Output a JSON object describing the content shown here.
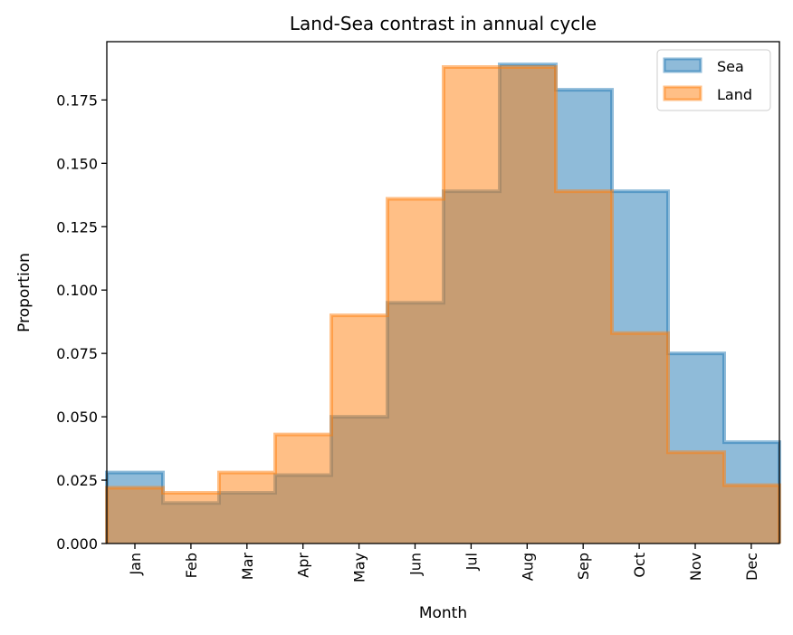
{
  "chart_data": {
    "type": "histogram",
    "title": "Land-Sea contrast in annual cycle",
    "xlabel": "Month",
    "ylabel": "Proportion",
    "categories": [
      "Jan",
      "Feb",
      "Mar",
      "Apr",
      "May",
      "Jun",
      "Jul",
      "Aug",
      "Sep",
      "Oct",
      "Nov",
      "Dec"
    ],
    "ylim": [
      0,
      0.198
    ],
    "yticks": [
      "0.000",
      "0.025",
      "0.050",
      "0.075",
      "0.100",
      "0.125",
      "0.150",
      "0.175"
    ],
    "legend_position": "top-right",
    "series": [
      {
        "name": "Sea",
        "color": "#1f77b4",
        "values": [
          0.028,
          0.016,
          0.02,
          0.027,
          0.05,
          0.095,
          0.139,
          0.189,
          0.179,
          0.139,
          0.075,
          0.04
        ]
      },
      {
        "name": "Land",
        "color": "#ff7f0e",
        "values": [
          0.022,
          0.02,
          0.028,
          0.043,
          0.09,
          0.136,
          0.188,
          0.188,
          0.139,
          0.083,
          0.036,
          0.023
        ]
      }
    ]
  }
}
